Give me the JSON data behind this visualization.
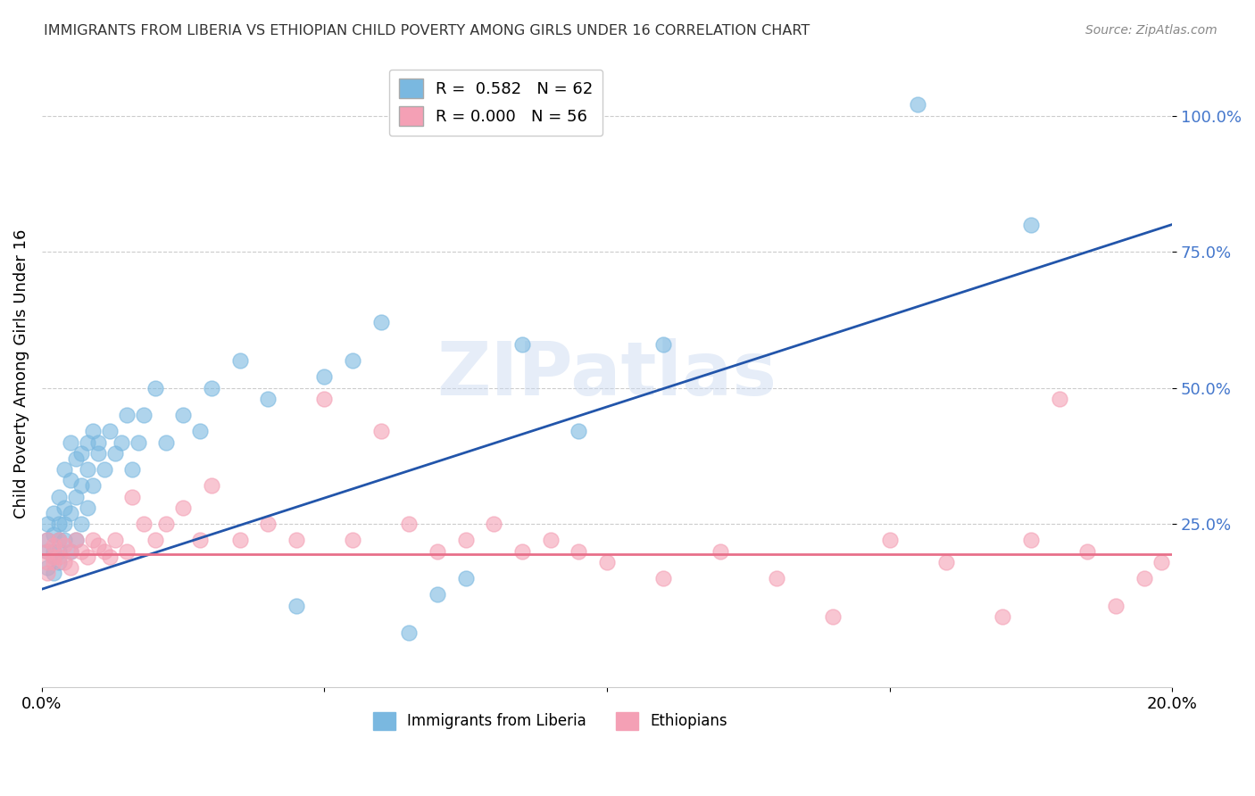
{
  "title": "IMMIGRANTS FROM LIBERIA VS ETHIOPIAN CHILD POVERTY AMONG GIRLS UNDER 16 CORRELATION CHART",
  "source": "Source: ZipAtlas.com",
  "ylabel": "Child Poverty Among Girls Under 16",
  "xlim": [
    0.0,
    0.2
  ],
  "ylim": [
    -0.05,
    1.1
  ],
  "yticks": [
    0.25,
    0.5,
    0.75,
    1.0
  ],
  "ytick_labels": [
    "25.0%",
    "50.0%",
    "75.0%",
    "100.0%"
  ],
  "watermark": "ZIPatlas",
  "liberia_R": 0.582,
  "liberia_N": 62,
  "ethiopian_R": 0.0,
  "ethiopian_N": 56,
  "liberia_color": "#7ab8e0",
  "ethiopian_color": "#f4a0b5",
  "liberia_trend_color": "#2255aa",
  "ethiopian_trend_color": "#e8708a",
  "tick_color": "#4477cc",
  "background_color": "#ffffff",
  "grid_color": "#cccccc",
  "liberia_trend_y0": 0.13,
  "liberia_trend_y1": 0.8,
  "ethiopian_trend_y": 0.195,
  "liberia_x": [
    0.001,
    0.001,
    0.001,
    0.001,
    0.002,
    0.002,
    0.002,
    0.002,
    0.002,
    0.003,
    0.003,
    0.003,
    0.003,
    0.003,
    0.004,
    0.004,
    0.004,
    0.004,
    0.005,
    0.005,
    0.005,
    0.005,
    0.006,
    0.006,
    0.006,
    0.007,
    0.007,
    0.007,
    0.008,
    0.008,
    0.008,
    0.009,
    0.009,
    0.01,
    0.01,
    0.011,
    0.012,
    0.013,
    0.014,
    0.015,
    0.016,
    0.017,
    0.018,
    0.02,
    0.022,
    0.025,
    0.028,
    0.03,
    0.035,
    0.04,
    0.045,
    0.05,
    0.055,
    0.06,
    0.065,
    0.07,
    0.075,
    0.085,
    0.095,
    0.11,
    0.155,
    0.175
  ],
  "liberia_y": [
    0.2,
    0.22,
    0.25,
    0.17,
    0.23,
    0.2,
    0.27,
    0.19,
    0.16,
    0.25,
    0.3,
    0.22,
    0.18,
    0.2,
    0.35,
    0.28,
    0.22,
    0.25,
    0.4,
    0.33,
    0.27,
    0.2,
    0.37,
    0.3,
    0.22,
    0.38,
    0.32,
    0.25,
    0.35,
    0.4,
    0.28,
    0.42,
    0.32,
    0.4,
    0.38,
    0.35,
    0.42,
    0.38,
    0.4,
    0.45,
    0.35,
    0.4,
    0.45,
    0.5,
    0.4,
    0.45,
    0.42,
    0.5,
    0.55,
    0.48,
    0.1,
    0.52,
    0.55,
    0.62,
    0.05,
    0.12,
    0.15,
    0.58,
    0.42,
    0.58,
    1.02,
    0.8
  ],
  "ethiopian_x": [
    0.001,
    0.001,
    0.001,
    0.001,
    0.002,
    0.002,
    0.002,
    0.003,
    0.003,
    0.004,
    0.004,
    0.005,
    0.005,
    0.006,
    0.007,
    0.008,
    0.009,
    0.01,
    0.011,
    0.012,
    0.013,
    0.015,
    0.016,
    0.018,
    0.02,
    0.022,
    0.025,
    0.028,
    0.03,
    0.035,
    0.04,
    0.045,
    0.05,
    0.055,
    0.06,
    0.065,
    0.07,
    0.075,
    0.08,
    0.085,
    0.09,
    0.095,
    0.1,
    0.11,
    0.12,
    0.13,
    0.14,
    0.15,
    0.16,
    0.17,
    0.175,
    0.18,
    0.185,
    0.19,
    0.195,
    0.198
  ],
  "ethiopian_y": [
    0.2,
    0.18,
    0.22,
    0.16,
    0.19,
    0.21,
    0.18,
    0.22,
    0.19,
    0.21,
    0.18,
    0.2,
    0.17,
    0.22,
    0.2,
    0.19,
    0.22,
    0.21,
    0.2,
    0.19,
    0.22,
    0.2,
    0.3,
    0.25,
    0.22,
    0.25,
    0.28,
    0.22,
    0.32,
    0.22,
    0.25,
    0.22,
    0.48,
    0.22,
    0.42,
    0.25,
    0.2,
    0.22,
    0.25,
    0.2,
    0.22,
    0.2,
    0.18,
    0.15,
    0.2,
    0.15,
    0.08,
    0.22,
    0.18,
    0.08,
    0.22,
    0.48,
    0.2,
    0.1,
    0.15,
    0.18
  ]
}
